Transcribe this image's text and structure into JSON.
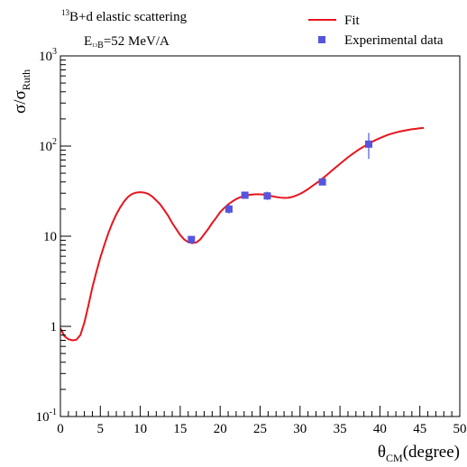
{
  "chart_data": {
    "type": "line",
    "annotation": {
      "line1": {
        "sup": "13",
        "text": "B+d elastic scattering"
      },
      "line2": {
        "base": "E",
        "sub_sup": "13",
        "sub_base": "B",
        "text": "=52 MeV/A"
      }
    },
    "xlabel": {
      "base": "θ",
      "sub": "CM",
      "rest": "(degree)"
    },
    "ylabel": {
      "base": "σ/σ",
      "sub": "Ruth"
    },
    "xlim": [
      0,
      50
    ],
    "ylim": [
      0.1,
      1000
    ],
    "yscale": "log",
    "x_ticks": [
      "0",
      "5",
      "10",
      "15",
      "20",
      "25",
      "30",
      "35",
      "40",
      "45",
      "50"
    ],
    "y_ticks": [
      {
        "base": "10",
        "exp": "-1"
      },
      {
        "base": "1",
        "exp": ""
      },
      {
        "base": "10",
        "exp": ""
      },
      {
        "base": "10",
        "exp": "2"
      },
      {
        "base": "10",
        "exp": "3"
      }
    ],
    "legend": {
      "placement": "top-right",
      "entries": [
        {
          "label": "Fit",
          "kind": "line"
        },
        {
          "label": "Experimental data",
          "kind": "marker"
        }
      ]
    },
    "colors": {
      "fit": "#e8141c",
      "data": "#5555dd",
      "axis": "#000000"
    },
    "series": [
      {
        "name": "Fit",
        "kind": "line",
        "x": [
          0.0,
          0.5,
          1.0,
          1.5,
          2.0,
          2.5,
          3.0,
          3.5,
          4.0,
          4.5,
          5.0,
          5.5,
          6.0,
          6.5,
          7.0,
          7.5,
          8.0,
          8.5,
          9.0,
          9.5,
          10.0,
          10.5,
          11.0,
          11.5,
          12.0,
          12.5,
          13.0,
          13.5,
          14.0,
          14.5,
          15.0,
          15.5,
          16.0,
          16.5,
          17.0,
          17.5,
          18.0,
          18.5,
          19.0,
          19.5,
          20.0,
          20.5,
          21.0,
          21.5,
          22.0,
          22.5,
          23.0,
          23.5,
          24.0,
          24.5,
          25.0,
          25.5,
          26.0,
          26.5,
          27.0,
          27.5,
          28.0,
          28.5,
          29.0,
          29.5,
          30.0,
          30.5,
          31.0,
          31.5,
          32.0,
          32.5,
          33.0,
          33.5,
          34.0,
          34.5,
          35.0,
          35.5,
          36.0,
          36.5,
          37.0,
          37.5,
          38.0,
          38.5,
          39.0,
          39.5,
          40.0,
          40.5,
          41.0,
          41.5,
          42.0,
          42.5,
          43.0,
          43.5,
          44.0,
          44.5,
          45.0,
          45.5
        ],
        "y": [
          0.95,
          0.78,
          0.72,
          0.7,
          0.71,
          0.8,
          1.1,
          1.7,
          2.7,
          4.0,
          5.8,
          8.0,
          10.8,
          14.0,
          17.5,
          21.0,
          24.5,
          27.5,
          29.5,
          30.5,
          30.8,
          30.5,
          29.5,
          27.5,
          25.0,
          22.5,
          19.5,
          16.8,
          14.0,
          12.0,
          10.3,
          9.2,
          8.6,
          8.4,
          8.5,
          9.2,
          10.5,
          12.0,
          14.0,
          16.0,
          18.5,
          20.5,
          22.5,
          24.2,
          25.8,
          27.0,
          28.0,
          28.6,
          29.0,
          29.2,
          29.2,
          28.9,
          28.4,
          27.8,
          27.2,
          26.8,
          26.6,
          26.7,
          27.2,
          28.2,
          29.5,
          31.2,
          33.3,
          35.8,
          38.5,
          41.5,
          45.0,
          49.0,
          53.5,
          58.3,
          63.5,
          69.0,
          75.0,
          81.0,
          87.0,
          93.0,
          99.0,
          105.0,
          111.0,
          117.0,
          122.5,
          128.0,
          133.0,
          137.5,
          141.5,
          145.0,
          148.0,
          151.0,
          153.5,
          155.5,
          157.5,
          159.0
        ]
      },
      {
        "name": "Experimental data",
        "kind": "points",
        "x": [
          16.4,
          21.1,
          23.1,
          25.9,
          32.8,
          38.6
        ],
        "y": [
          9.2,
          20.0,
          28.5,
          28.0,
          40.0,
          105.0
        ],
        "err_low": [
          8.6,
          17.8,
          26.5,
          25.2,
          38.3,
          72.0
        ],
        "err_high": [
          9.8,
          22.5,
          30.8,
          31.2,
          42.0,
          140.0
        ]
      }
    ]
  }
}
